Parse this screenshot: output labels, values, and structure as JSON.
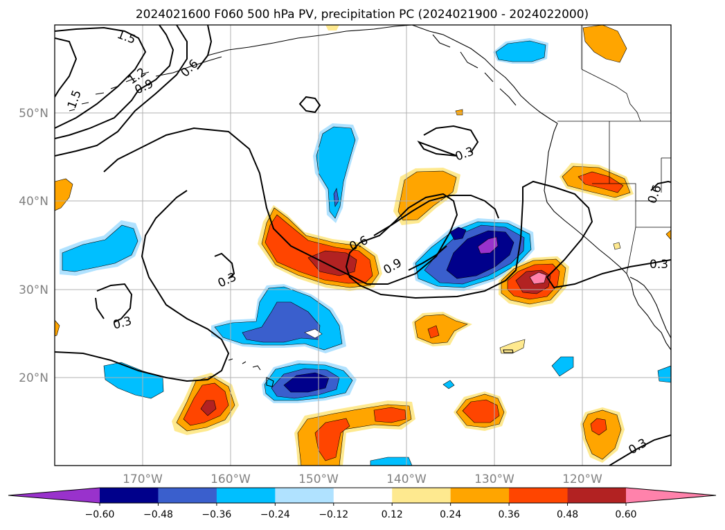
{
  "title": "2024021600 F060 500 hPa PV, precipitation PC (2024021900 - 2024022000)",
  "axes": {
    "lon_ticks": [
      "170°W",
      "160°W",
      "150°W",
      "140°W",
      "130°W",
      "120°W"
    ],
    "lat_ticks": [
      "50°N",
      "40°N",
      "30°N",
      "20°N"
    ]
  },
  "colorbar": {
    "colors": [
      "#9932cc",
      "#00008b",
      "#3a5fcd",
      "#00bfff",
      "#b0e2ff",
      "#ffffff",
      "#fee98f",
      "#ffa500",
      "#ff4500",
      "#b22222",
      "#ff82ab"
    ],
    "tick_labels": [
      "−0.60",
      "−0.48",
      "−0.36",
      "−0.24",
      "−0.12",
      "0.12",
      "0.24",
      "0.36",
      "0.48",
      "0.60"
    ]
  },
  "contour_labels": [
    "1.5",
    "1.2",
    "0.9",
    "0.6",
    "1.5",
    "0.3",
    "0.3",
    "0.3",
    "0.6",
    "0.9",
    "0.6",
    "0.3",
    "0.3"
  ],
  "chart_data": {
    "type": "heatmap",
    "title": "2024021600 F060 500 hPa PV, precipitation PC (2024021900 - 2024022000)",
    "field": "precipitation PC",
    "contour_field": "500 hPa PV",
    "contour_levels": [
      0.3,
      0.6,
      0.9,
      1.2,
      1.5
    ],
    "color_levels": [
      -0.6,
      -0.48,
      -0.36,
      -0.24,
      -0.12,
      0.12,
      0.24,
      0.36,
      0.48,
      0.6
    ],
    "lon_range": [
      "180°",
      "110°W"
    ],
    "lat_range": [
      "10°N",
      "60°N"
    ],
    "grid": true,
    "colorbar_placement": "bottom",
    "colorbar_extend": "both"
  }
}
